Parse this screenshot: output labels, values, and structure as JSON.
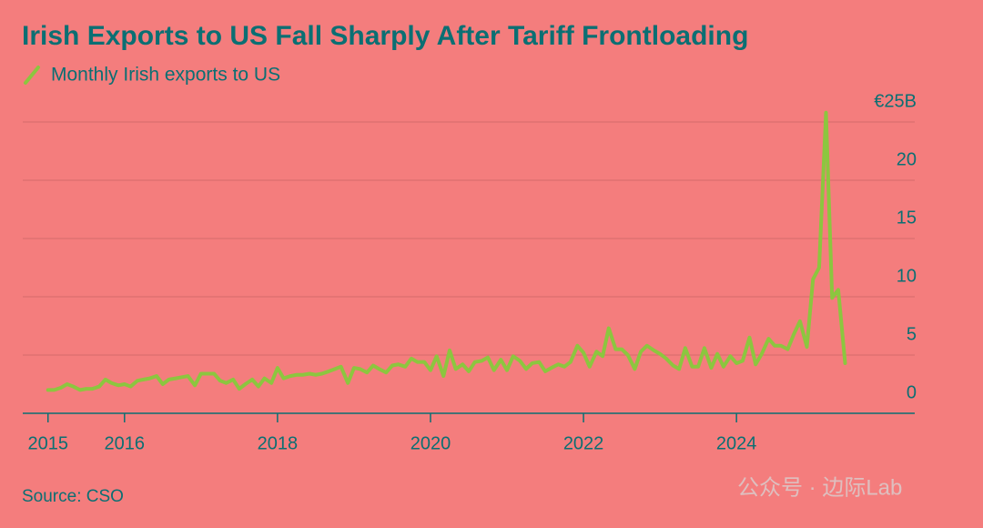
{
  "chart_data": {
    "type": "line",
    "title": "Irish Exports to US Fall Sharply After Tariff Frontloading",
    "source": "Source: CSO",
    "watermark": "公众号 · 边际Lab",
    "x": [
      2015.0,
      2015.08,
      2015.17,
      2015.25,
      2015.33,
      2015.42,
      2015.5,
      2015.58,
      2015.67,
      2015.75,
      2015.83,
      2015.92,
      2016.0,
      2016.08,
      2016.17,
      2016.25,
      2016.33,
      2016.42,
      2016.5,
      2016.58,
      2016.67,
      2016.75,
      2016.83,
      2016.92,
      2017.0,
      2017.08,
      2017.17,
      2017.25,
      2017.33,
      2017.42,
      2017.5,
      2017.58,
      2017.67,
      2017.75,
      2017.83,
      2017.92,
      2018.0,
      2018.08,
      2018.17,
      2018.25,
      2018.33,
      2018.42,
      2018.5,
      2018.58,
      2018.67,
      2018.75,
      2018.83,
      2018.92,
      2019.0,
      2019.08,
      2019.17,
      2019.25,
      2019.33,
      2019.42,
      2019.5,
      2019.58,
      2019.67,
      2019.75,
      2019.83,
      2019.92,
      2020.0,
      2020.08,
      2020.17,
      2020.25,
      2020.33,
      2020.42,
      2020.5,
      2020.58,
      2020.67,
      2020.75,
      2020.83,
      2020.92,
      2021.0,
      2021.08,
      2021.17,
      2021.25,
      2021.33,
      2021.42,
      2021.5,
      2021.58,
      2021.67,
      2021.75,
      2021.83,
      2021.92,
      2022.0,
      2022.08,
      2022.17,
      2022.25,
      2022.33,
      2022.42,
      2022.5,
      2022.58,
      2022.67,
      2022.75,
      2022.83,
      2022.92,
      2023.0,
      2023.08,
      2023.17,
      2023.25,
      2023.33,
      2023.42,
      2023.5,
      2023.58,
      2023.67,
      2023.75,
      2023.83,
      2023.92,
      2024.0,
      2024.08,
      2024.17,
      2024.25,
      2024.33,
      2024.42,
      2024.5,
      2024.58,
      2024.67,
      2024.75,
      2024.83,
      2024.92,
      2025.0,
      2025.08,
      2025.17,
      2025.25,
      2025.33,
      2025.42
    ],
    "series": [
      {
        "name": "Monthly Irish exports to US",
        "color": "#8cc63f",
        "values": [
          2.0,
          2.0,
          2.2,
          2.5,
          2.3,
          2.0,
          2.1,
          2.1,
          2.3,
          2.9,
          2.6,
          2.4,
          2.5,
          2.3,
          2.8,
          2.9,
          3.0,
          3.2,
          2.5,
          2.9,
          3.0,
          3.1,
          3.2,
          2.4,
          3.4,
          3.4,
          3.4,
          2.8,
          2.6,
          2.9,
          2.1,
          2.5,
          2.9,
          2.3,
          3.0,
          2.6,
          3.9,
          3.0,
          3.2,
          3.3,
          3.3,
          3.4,
          3.3,
          3.4,
          3.6,
          3.8,
          4.0,
          2.6,
          3.9,
          3.8,
          3.5,
          4.1,
          3.8,
          3.5,
          4.1,
          4.2,
          4.0,
          4.7,
          4.4,
          4.4,
          3.7,
          4.9,
          3.2,
          5.4,
          3.8,
          4.2,
          3.6,
          4.4,
          4.5,
          4.8,
          3.7,
          4.6,
          3.7,
          4.9,
          4.5,
          3.8,
          4.3,
          4.4,
          3.6,
          3.9,
          4.2,
          4.0,
          4.4,
          5.8,
          5.2,
          4.0,
          5.3,
          4.9,
          7.3,
          5.5,
          5.5,
          5.0,
          3.8,
          5.3,
          5.8,
          5.4,
          5.1,
          4.7,
          4.1,
          3.8,
          5.6,
          4.0,
          4.0,
          5.6,
          3.9,
          5.1,
          4.0,
          4.9,
          4.3,
          4.5,
          6.5,
          4.2,
          5.1,
          6.4,
          5.8,
          5.8,
          5.5,
          6.8,
          7.9,
          5.7,
          11.5,
          12.5,
          25.8,
          9.9,
          10.6,
          4.3
        ]
      }
    ],
    "xlim": [
      2014.67,
      2026.33
    ],
    "xticks": [
      2015,
      2016,
      2018,
      2020,
      2022,
      2024
    ],
    "ylim": [
      0,
      27
    ],
    "yticks": [
      0,
      5,
      10,
      15,
      20,
      {
        "value": 25,
        "label": "€25B"
      }
    ],
    "grid": true
  }
}
